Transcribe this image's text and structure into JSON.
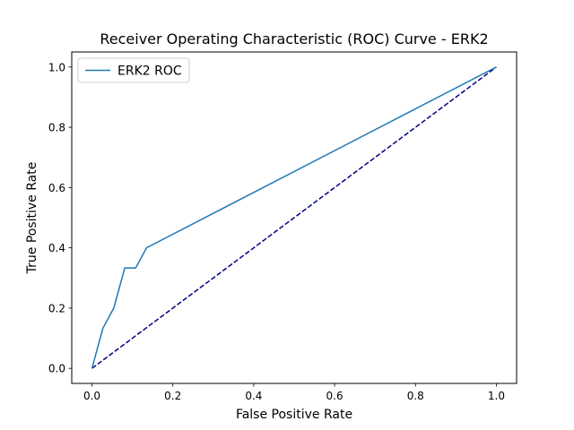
{
  "chart_data": {
    "type": "line",
    "title": "Receiver Operating Characteristic (ROC) Curve - ERK2",
    "xlabel": "False Positive Rate",
    "ylabel": "True Positive Rate",
    "xlim": [
      -0.05,
      1.05
    ],
    "ylim": [
      -0.05,
      1.05
    ],
    "xticks": [
      0.0,
      0.2,
      0.4,
      0.6,
      0.8,
      1.0
    ],
    "xtick_labels": [
      "0.0",
      "0.2",
      "0.4",
      "0.6",
      "0.8",
      "1.0"
    ],
    "yticks": [
      0.0,
      0.2,
      0.4,
      0.6,
      0.8,
      1.0
    ],
    "ytick_labels": [
      "0.0",
      "0.2",
      "0.4",
      "0.6",
      "0.8",
      "1.0"
    ],
    "grid": false,
    "legend_position": "upper left",
    "series": [
      {
        "name": "ERK2 ROC",
        "color": "#1f77b4",
        "line_style": "solid",
        "x": [
          0.0,
          0.027,
          0.054,
          0.081,
          0.108,
          0.135,
          1.0
        ],
        "y": [
          0.0,
          0.133,
          0.2,
          0.333,
          0.333,
          0.4,
          1.0
        ]
      },
      {
        "color": "#000080",
        "line_style": "dashed",
        "x": [
          0.0,
          1.0
        ],
        "y": [
          0.0,
          1.0
        ]
      }
    ]
  }
}
